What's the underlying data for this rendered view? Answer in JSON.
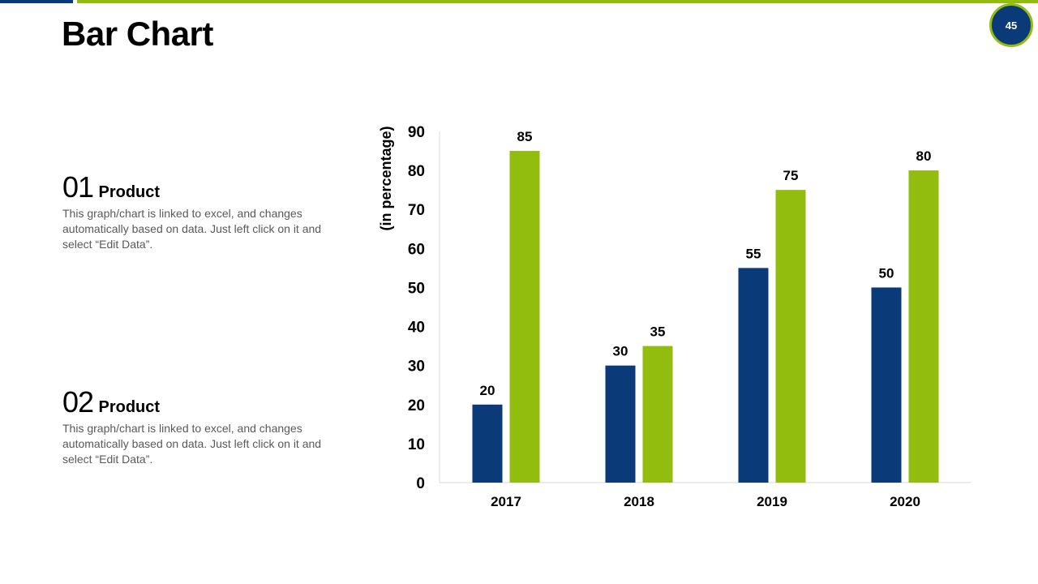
{
  "slide": {
    "title": "Bar Chart",
    "page_number": "45"
  },
  "products": [
    {
      "number": "01",
      "name": "Product",
      "description": "This graph/chart is linked to excel, and changes automatically based on data. Just left click on it and select “Edit Data”."
    },
    {
      "number": "02",
      "name": "Product",
      "description": "This graph/chart is linked to excel, and changes automatically based on data. Just left click on it and select “Edit Data”."
    }
  ],
  "colors": {
    "series1": "#0a3a78",
    "series2": "#92bc0e",
    "axis": "#d9d9d9",
    "label": "#000000"
  },
  "chart_data": {
    "type": "bar",
    "title": "",
    "xlabel": "",
    "ylabel": "(in percentage)",
    "categories": [
      "2017",
      "2018",
      "2019",
      "2020"
    ],
    "series": [
      {
        "name": "Product 01",
        "values": [
          20,
          30,
          55,
          50
        ]
      },
      {
        "name": "Product 02",
        "values": [
          85,
          35,
          75,
          80
        ]
      }
    ],
    "ylim": [
      0,
      90
    ],
    "yticks": [
      0,
      10,
      20,
      30,
      40,
      50,
      60,
      70,
      80,
      90
    ],
    "grid": false,
    "data_labels": true,
    "legend": "none"
  }
}
